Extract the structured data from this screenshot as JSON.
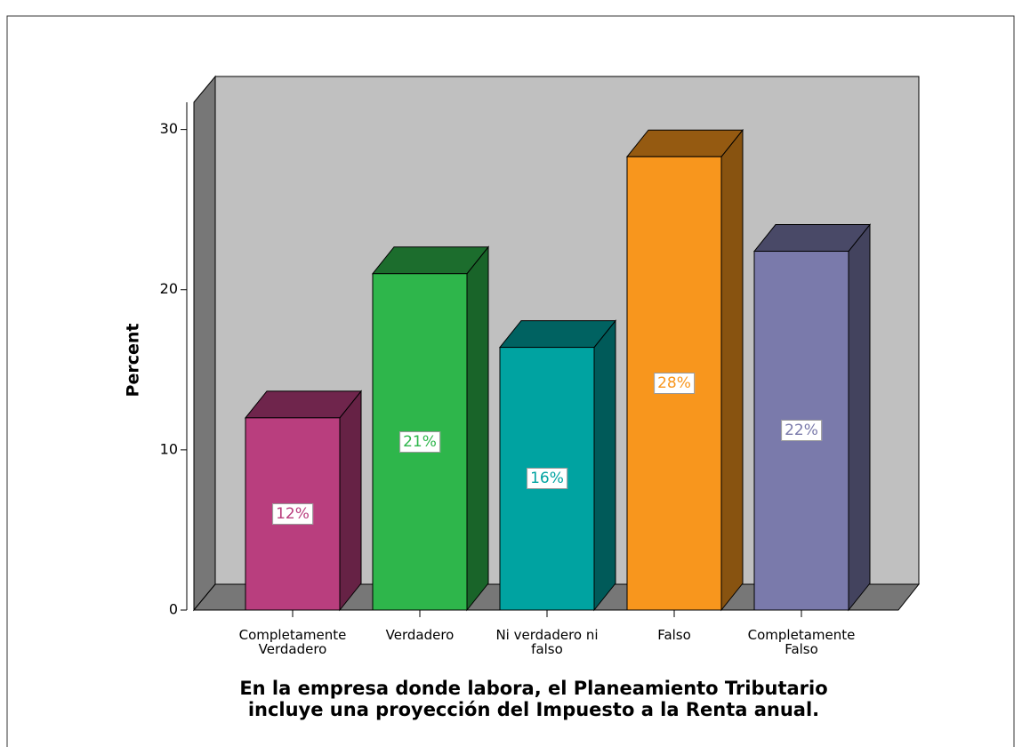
{
  "chart_data": {
    "type": "bar3d",
    "y_label": "Percent",
    "x_label": "En la empresa donde labora, el Planeamiento Tributario incluye una proyección del Impuesto a la Renta anual.",
    "categories": [
      "Completamente Verdadero",
      "Verdadero",
      "Ni verdadero ni falso",
      "Falso",
      "Completamente Falso"
    ],
    "values": [
      12,
      21,
      16.4,
      28.3,
      22.4
    ],
    "value_labels": [
      "12%",
      "21%",
      "16%",
      "28%",
      "22%"
    ],
    "colors": [
      "#b93e7e",
      "#2eb64b",
      "#00a3a1",
      "#f8961d",
      "#7a7aab"
    ],
    "ylim": [
      0,
      31.7
    ],
    "yticks": [
      0,
      10,
      20,
      30
    ]
  }
}
